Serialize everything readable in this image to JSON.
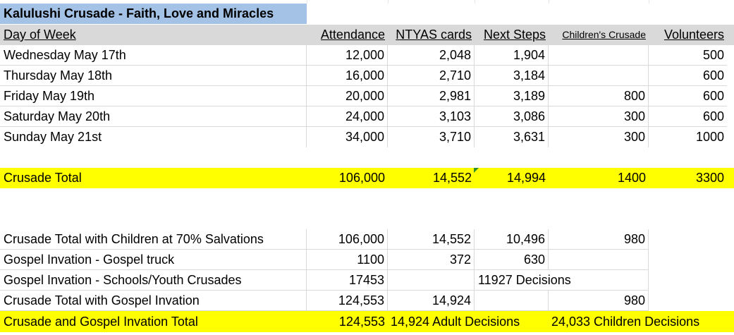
{
  "title": "Kalulushi Crusade - Faith, Love and Miracles",
  "headers": {
    "day": "Day of Week",
    "attendance": "Attendance",
    "ntyas": "NTYAS cards",
    "next_steps": "Next Steps",
    "children": "Children's Crusade",
    "volunteers": "Volunteers"
  },
  "days": [
    {
      "day": "Wednesday May 17th",
      "attendance": "12,000",
      "ntyas": "2,048",
      "next_steps": "1,904",
      "children": "",
      "volunteers": "500"
    },
    {
      "day": "Thursday May 18th",
      "attendance": "16,000",
      "ntyas": "2,710",
      "next_steps": "3,184",
      "children": "",
      "volunteers": "600"
    },
    {
      "day": "Friday May 19th",
      "attendance": "20,000",
      "ntyas": "2,981",
      "next_steps": "3,189",
      "children": "800",
      "volunteers": "600"
    },
    {
      "day": "Saturday May 20th",
      "attendance": "24,000",
      "ntyas": "3,103",
      "next_steps": "3,086",
      "children": "300",
      "volunteers": "600"
    },
    {
      "day": "Sunday May 21st",
      "attendance": "34,000",
      "ntyas": "3,710",
      "next_steps": "3,631",
      "children": "300",
      "volunteers": "1000"
    }
  ],
  "total": {
    "label": "Crusade Total",
    "attendance": "106,000",
    "ntyas": "14,552",
    "next_steps": "14,994",
    "children": "1400",
    "volunteers": "3300"
  },
  "summary": [
    {
      "label": "Crusade Total with Children at 70% Salvations",
      "attendance": "106,000",
      "ntyas": "14,552",
      "next_steps": "10,496",
      "children": "980"
    },
    {
      "label": "Gospel Invation - Gospel truck",
      "attendance": "1100",
      "ntyas": "372",
      "next_steps": "630",
      "children": ""
    },
    {
      "label": "Gospel Invation - Schools/Youth Crusades",
      "attendance": "17453",
      "ntyas": "",
      "next_steps": "11927 Decisions",
      "children": ""
    },
    {
      "label": "Crusade Total with Gospel Invation",
      "attendance": "124,553",
      "ntyas": "14,924",
      "next_steps": "",
      "children": "980"
    }
  ],
  "grand_total": {
    "label": "Crusade and Gospel Invation Total",
    "attendance": "124,553",
    "adult": "14,924 Adult Decisions",
    "children": "24,033 Children Decisions"
  },
  "colors": {
    "title_bg": "#a4c2e5",
    "header_bg": "#d9d9d9",
    "highlight": "#ffff00"
  }
}
